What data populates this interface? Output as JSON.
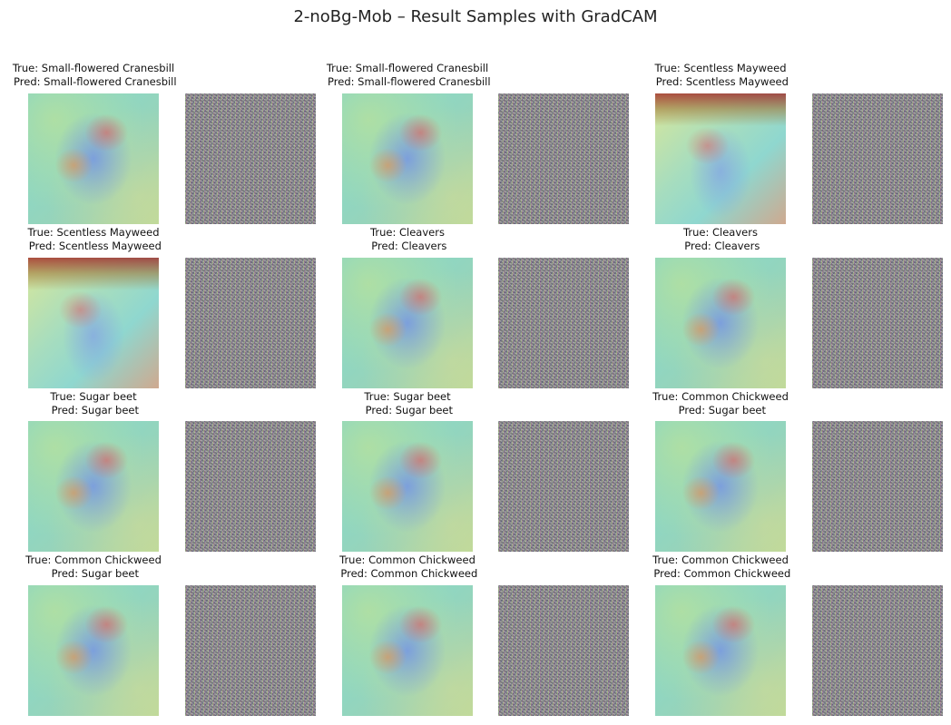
{
  "title": "2-noBg-Mob – Result Samples with GradCAM",
  "samples": [
    {
      "caption": "True: Small-flowered Cranesbill\n Pred: Small-flowered Cranesbill",
      "cam": "cam"
    },
    {
      "caption": "True: Small-flowered Cranesbill\n Pred: Small-flowered Cranesbill",
      "cam": "cam"
    },
    {
      "caption": "True: Scentless Mayweed\n Pred: Scentless Mayweed",
      "cam": "cam-alt"
    },
    {
      "caption": "True: Scentless Mayweed\n Pred: Scentless Mayweed",
      "cam": "cam-alt"
    },
    {
      "caption": "True: Cleavers\n Pred: Cleavers",
      "cam": "cam"
    },
    {
      "caption": "True: Cleavers\n Pred: Cleavers",
      "cam": "cam"
    },
    {
      "caption": "True: Sugar beet\n Pred: Sugar beet",
      "cam": "cam"
    },
    {
      "caption": "True: Sugar beet\n Pred: Sugar beet",
      "cam": "cam"
    },
    {
      "caption": "True: Common Chickweed\n Pred: Sugar beet",
      "cam": "cam"
    },
    {
      "caption": "True: Common Chickweed\n Pred: Sugar beet",
      "cam": "cam"
    },
    {
      "caption": "True: Common Chickweed\n Pred: Common Chickweed",
      "cam": "cam"
    },
    {
      "caption": "True: Common Chickweed\n Pred: Common Chickweed",
      "cam": "cam"
    }
  ]
}
